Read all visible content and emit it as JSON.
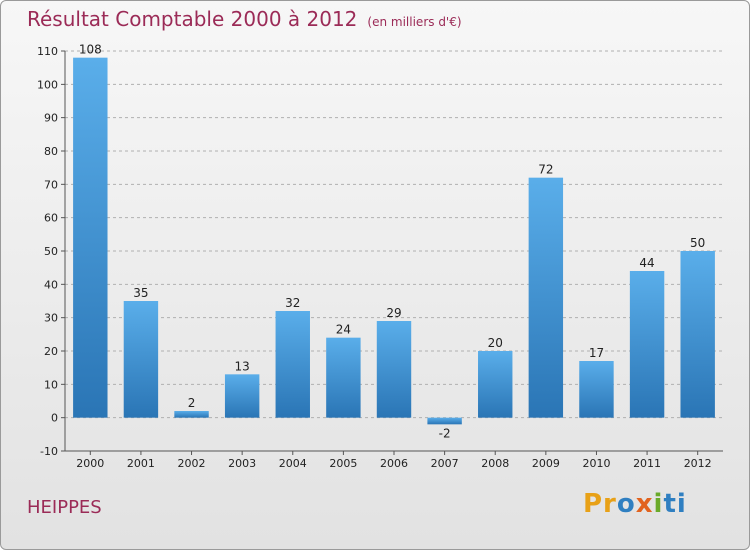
{
  "header": {
    "title": "Résultat Comptable 2000 à 2012",
    "subtitle": "(en milliers d'€)"
  },
  "footer": {
    "commune": "HEIPPES",
    "logo": [
      "Pr",
      "o",
      "x",
      "i",
      "ti"
    ]
  },
  "colors": {
    "title": "#9b2b57",
    "bar_light": "#5aaeea",
    "bar_dark": "#2a75b5",
    "grid": "#b0b0b0"
  },
  "chart_data": {
    "type": "bar",
    "title": "Résultat Comptable 2000 à 2012",
    "subtitle": "(en milliers d'€)",
    "categories": [
      "2000",
      "2001",
      "2002",
      "2003",
      "2004",
      "2005",
      "2006",
      "2007",
      "2008",
      "2009",
      "2010",
      "2011",
      "2012"
    ],
    "values": [
      108,
      35,
      2,
      13,
      32,
      24,
      29,
      -2,
      20,
      72,
      17,
      44,
      50
    ],
    "ylim": [
      -10,
      110
    ],
    "yticks": [
      -10,
      0,
      10,
      20,
      30,
      40,
      50,
      60,
      70,
      80,
      90,
      100,
      110
    ],
    "grid": "dashed-horizontal",
    "legend": "none"
  }
}
